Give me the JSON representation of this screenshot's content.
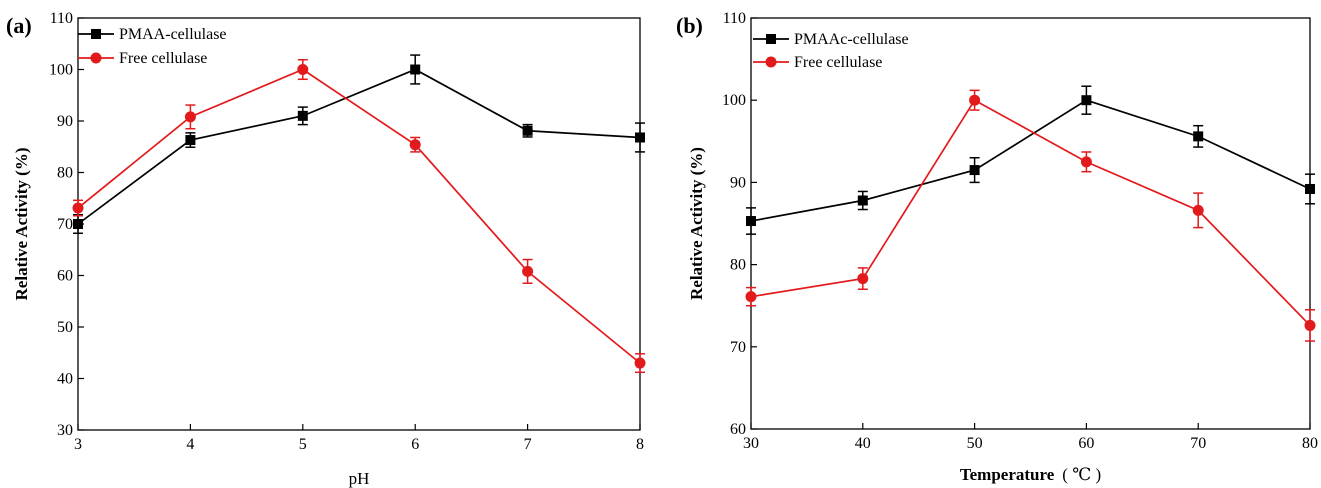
{
  "chart_data": [
    {
      "type": "line",
      "panel_label": "(a)",
      "xlabel": "pH",
      "ylabel": "Relative Activity (%)",
      "xlim": [
        3,
        8
      ],
      "ylim": [
        30,
        110
      ],
      "x_ticks": [
        "3",
        "4",
        "5",
        "6",
        "7",
        "8"
      ],
      "y_ticks": [
        "30",
        "40",
        "50",
        "60",
        "70",
        "80",
        "90",
        "100",
        "110"
      ],
      "grid": false,
      "legend_position": "top-left",
      "series": [
        {
          "name": "PMAA-cellulase",
          "color": "#000000",
          "marker": "square",
          "x": [
            3,
            4,
            5,
            6,
            7,
            8
          ],
          "y": [
            70.0,
            86.3,
            91.0,
            100.0,
            88.1,
            86.8
          ],
          "error": [
            1.8,
            1.4,
            1.7,
            2.8,
            1.2,
            2.8
          ]
        },
        {
          "name": "Free cellulase",
          "color": "#e31a1c",
          "marker": "circle",
          "x": [
            3,
            4,
            5,
            6,
            7,
            8
          ],
          "y": [
            73.1,
            90.8,
            100.0,
            85.4,
            60.8,
            43.0
          ],
          "error": [
            1.5,
            2.3,
            1.9,
            1.4,
            2.3,
            1.8
          ]
        }
      ]
    },
    {
      "type": "line",
      "panel_label": "(b)",
      "xlabel": "Temperature",
      "xlabel_unit": "( ℃ )",
      "ylabel": "Relative Activity (%)",
      "xlim": [
        30,
        80
      ],
      "ylim": [
        60,
        110
      ],
      "x_ticks": [
        "30",
        "40",
        "50",
        "60",
        "70",
        "80"
      ],
      "y_ticks": [
        "60",
        "70",
        "80",
        "90",
        "100",
        "110"
      ],
      "grid": false,
      "legend_position": "top-left",
      "series": [
        {
          "name": "PMAAc-cellulase",
          "color": "#000000",
          "marker": "square",
          "x": [
            30,
            40,
            50,
            60,
            70,
            80
          ],
          "y": [
            85.3,
            87.8,
            91.5,
            100.0,
            95.6,
            89.2
          ],
          "error": [
            1.6,
            1.1,
            1.5,
            1.7,
            1.3,
            1.8
          ]
        },
        {
          "name": "Free cellulase",
          "color": "#e31a1c",
          "marker": "circle",
          "x": [
            30,
            40,
            50,
            60,
            70,
            80
          ],
          "y": [
            76.1,
            78.3,
            100.0,
            92.5,
            86.6,
            72.6
          ],
          "error": [
            1.1,
            1.3,
            1.2,
            1.2,
            2.1,
            1.9
          ]
        }
      ]
    }
  ]
}
